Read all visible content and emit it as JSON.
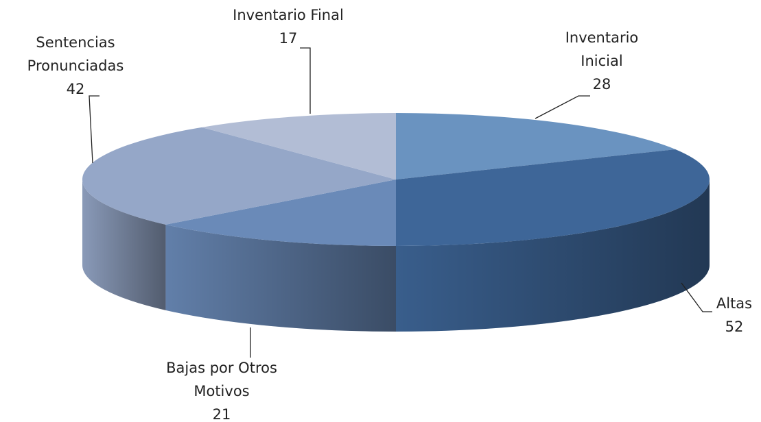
{
  "chart_data": {
    "type": "pie",
    "three_d": true,
    "categories": [
      "Inventario Inicial",
      "Altas",
      "Bajas por Otros Motivos",
      "Sentencias Pronunciadas",
      "Inventario Final"
    ],
    "values": [
      28,
      52,
      21,
      42,
      17
    ],
    "colors": [
      "#6a93c0",
      "#3e6698",
      "#6a8ab8",
      "#95a7c8",
      "#b2bdd5"
    ]
  }
}
